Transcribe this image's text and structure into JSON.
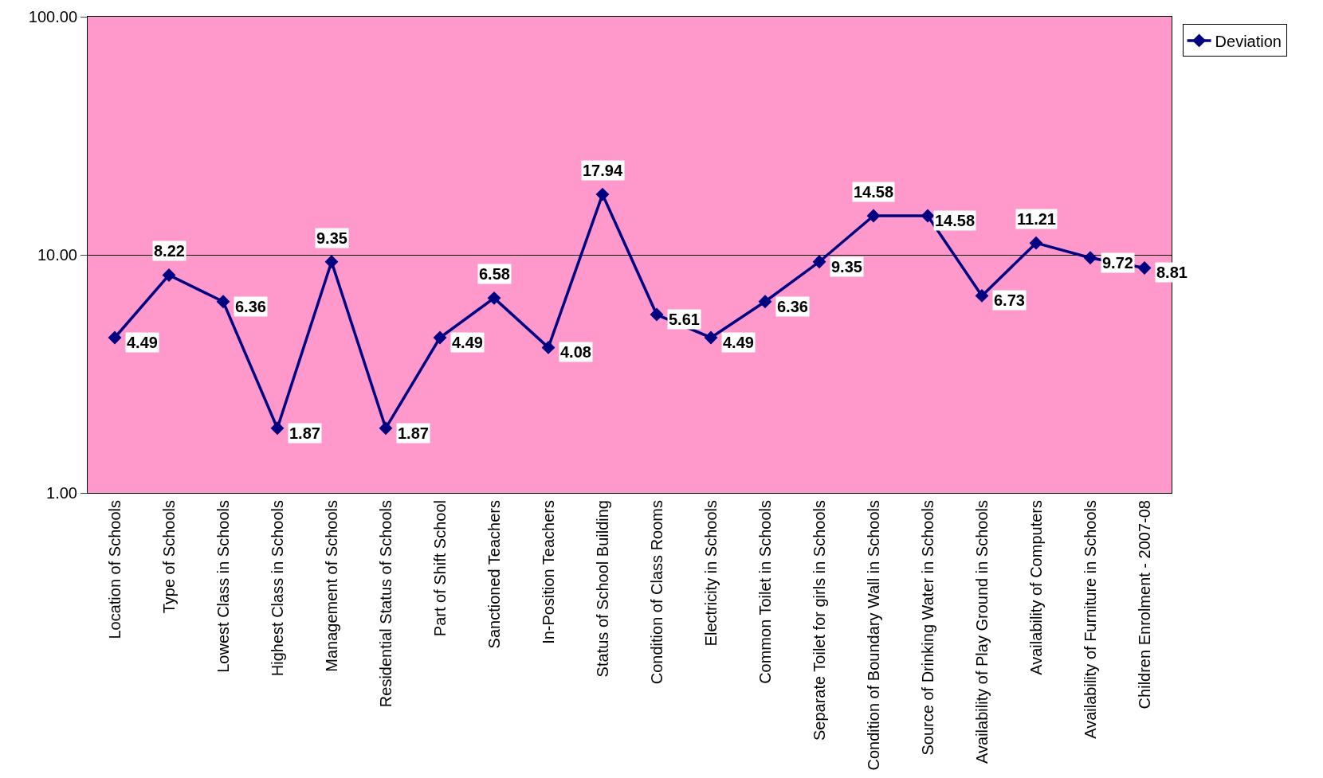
{
  "chart_data": {
    "type": "line",
    "categories": [
      "Location of Schools",
      "Type of Schools",
      "Lowest Class in Schools",
      "Highest Class in Schools",
      "Management of Schools",
      "Residential Status of Schools",
      "Part of Shift School",
      "Sanctioned Teachers",
      "In-Position Teachers",
      "Status of School Building",
      "Condition of Class Rooms",
      "Electricity in Schools",
      "Common Toilet in Schools",
      "Separate Toilet for girls in Schools",
      "Condition of Boundary Wall in Schools",
      "Source of Drinking Water in Schools",
      "Availability of Play Ground in Schools",
      "Availability of Computers",
      "Availability of Furniture in Schools",
      "Children Enrolment - 2007-08"
    ],
    "series": [
      {
        "name": "Deviation",
        "color": "#000080",
        "values": [
          4.49,
          8.22,
          6.36,
          1.87,
          9.35,
          1.87,
          4.49,
          6.58,
          4.08,
          17.94,
          5.61,
          4.49,
          6.36,
          9.35,
          14.58,
          14.58,
          6.73,
          11.21,
          9.72,
          8.81
        ]
      }
    ],
    "log": "y",
    "ylim": [
      1,
      100
    ],
    "yticks": [
      {
        "value": 1,
        "label": "1.00"
      },
      {
        "value": 10,
        "label": "10.00"
      },
      {
        "value": 100,
        "label": "100.00"
      }
    ],
    "grid": "y",
    "legend": "right",
    "marker": "diamond",
    "line_style": "solid",
    "data_labels": true
  }
}
